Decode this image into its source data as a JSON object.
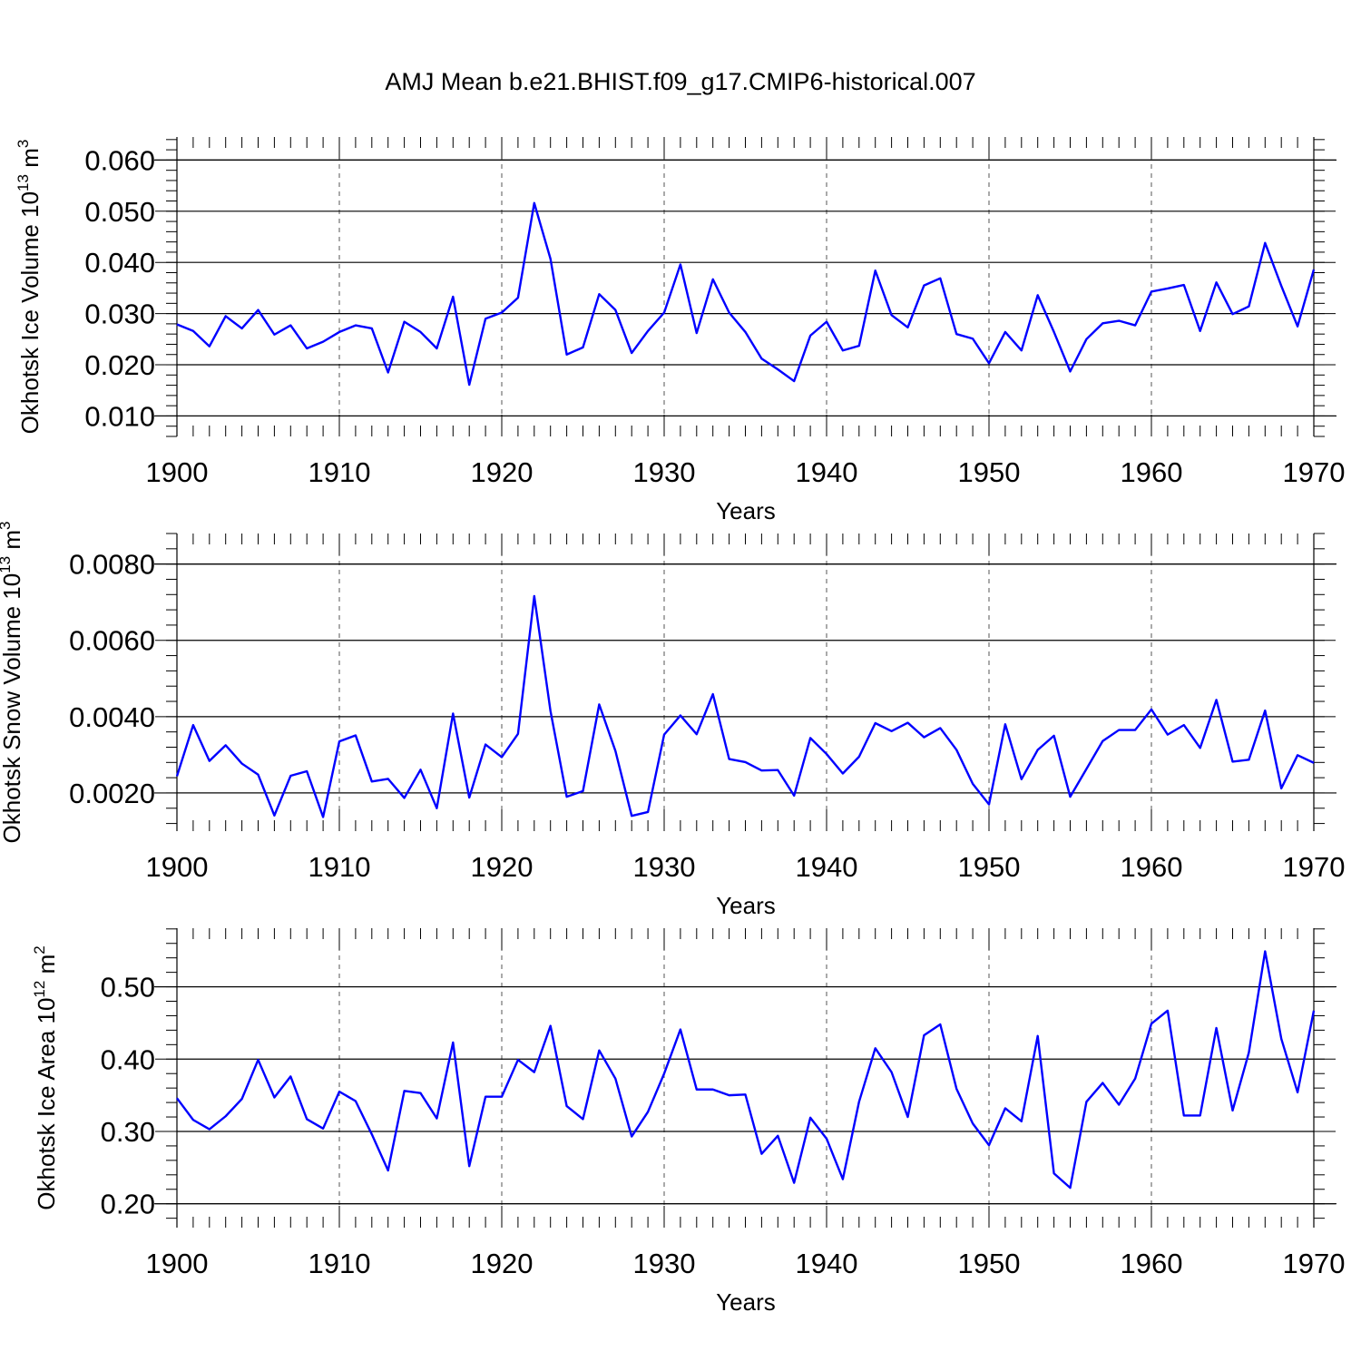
{
  "title": "AMJ Mean b.e21.BHIST.f09_g17.CMIP6-historical.007",
  "chart_data": [
    {
      "type": "line",
      "title": "AMJ Mean b.e21.BHIST.f09_g17.CMIP6-historical.007",
      "xlabel": "Years",
      "ylabel": "Okhotsk Ice Volume 10",
      "ylabel_exp": "13",
      "ylabel_unit": "m",
      "ylabel_unit_exp": "3",
      "xlim": [
        1900,
        1970
      ],
      "ylim": [
        0.006,
        0.0645
      ],
      "x_ticks": [
        1900,
        1910,
        1920,
        1930,
        1940,
        1950,
        1960,
        1970
      ],
      "x_tick_labels": [
        "1900",
        "1910",
        "1920",
        "1930",
        "1940",
        "1950",
        "1960",
        "1970"
      ],
      "y_ticks": [
        0.01,
        0.02,
        0.03,
        0.04,
        0.05,
        0.06
      ],
      "y_tick_labels": [
        "0.010",
        "0.020",
        "0.030",
        "0.040",
        "0.050",
        "0.060"
      ],
      "y_minor_step": 0.002,
      "grid": "x-dashed",
      "series": [
        {
          "name": "Ice Volume",
          "color": "#0000ff",
          "x_start": 1900,
          "values": [
            0.0279,
            0.0266,
            0.0236,
            0.0295,
            0.0271,
            0.0307,
            0.0259,
            0.0277,
            0.0232,
            0.0245,
            0.0264,
            0.0277,
            0.0271,
            0.0185,
            0.0284,
            0.0264,
            0.0232,
            0.0333,
            0.0161,
            0.029,
            0.0302,
            0.0331,
            0.0516,
            0.0407,
            0.022,
            0.0234,
            0.0338,
            0.0307,
            0.0223,
            0.0266,
            0.0302,
            0.0396,
            0.0262,
            0.0367,
            0.0302,
            0.0264,
            0.0212,
            0.0191,
            0.0168,
            0.0257,
            0.0284,
            0.0228,
            0.0237,
            0.0384,
            0.0297,
            0.0273,
            0.0355,
            0.0369,
            0.026,
            0.0251,
            0.0203,
            0.0264,
            0.0228,
            0.0336,
            0.0264,
            0.0187,
            0.025,
            0.0281,
            0.0286,
            0.0277,
            0.0343,
            0.0349,
            0.0356,
            0.0266,
            0.0361,
            0.0299,
            0.0314,
            0.0438,
            0.0354,
            0.0275,
            0.0386
          ]
        }
      ]
    },
    {
      "type": "line",
      "xlabel": "Years",
      "ylabel": "Okhotsk Snow Volume 10",
      "ylabel_exp": "13",
      "ylabel_unit": "m",
      "ylabel_unit_exp": "3",
      "xlim": [
        1900,
        1970
      ],
      "ylim": [
        0.001,
        0.0088
      ],
      "x_ticks": [
        1900,
        1910,
        1920,
        1930,
        1940,
        1950,
        1960,
        1970
      ],
      "x_tick_labels": [
        "1900",
        "1910",
        "1920",
        "1930",
        "1940",
        "1950",
        "1960",
        "1970"
      ],
      "y_ticks": [
        0.002,
        0.004,
        0.006,
        0.008
      ],
      "y_tick_labels": [
        "0.0020",
        "0.0040",
        "0.0060",
        "0.0080"
      ],
      "y_minor_step": 0.0004,
      "grid": "x-dashed",
      "series": [
        {
          "name": "Snow Volume",
          "color": "#0000ff",
          "x_start": 1900,
          "values": [
            0.00244,
            0.00378,
            0.00284,
            0.00325,
            0.00277,
            0.00248,
            0.00141,
            0.00245,
            0.00257,
            0.00137,
            0.00335,
            0.00351,
            0.0023,
            0.00237,
            0.00187,
            0.00261,
            0.0016,
            0.00408,
            0.00188,
            0.00327,
            0.00294,
            0.00355,
            0.00716,
            0.00415,
            0.0019,
            0.00205,
            0.00432,
            0.0031,
            0.0014,
            0.0015,
            0.00353,
            0.00403,
            0.00354,
            0.00459,
            0.00289,
            0.00281,
            0.00259,
            0.0026,
            0.00193,
            0.00344,
            0.00302,
            0.00251,
            0.00295,
            0.00383,
            0.00362,
            0.00384,
            0.00346,
            0.0037,
            0.00313,
            0.00224,
            0.0017,
            0.0038,
            0.00236,
            0.00313,
            0.0035,
            0.0019,
            0.00263,
            0.00336,
            0.00365,
            0.00365,
            0.00419,
            0.00353,
            0.00378,
            0.00318,
            0.00444,
            0.00282,
            0.00287,
            0.00416,
            0.00212,
            0.00299,
            0.00279
          ]
        }
      ]
    },
    {
      "type": "line",
      "xlabel": "Years",
      "ylabel": "Okhotsk Ice Area 10",
      "ylabel_exp": "12",
      "ylabel_unit": "m",
      "ylabel_unit_exp": "2",
      "xlim": [
        1900,
        1970
      ],
      "ylim": [
        0.167,
        0.581
      ],
      "x_ticks": [
        1900,
        1910,
        1920,
        1930,
        1940,
        1950,
        1960,
        1970
      ],
      "x_tick_labels": [
        "1900",
        "1910",
        "1920",
        "1930",
        "1940",
        "1950",
        "1960",
        "1970"
      ],
      "y_ticks": [
        0.2,
        0.3,
        0.4,
        0.5
      ],
      "y_tick_labels": [
        "0.20",
        "0.30",
        "0.40",
        "0.50"
      ],
      "y_minor_step": 0.02,
      "grid": "x-dashed",
      "series": [
        {
          "name": "Ice Area",
          "color": "#0000ff",
          "x_start": 1900,
          "values": [
            0.346,
            0.316,
            0.303,
            0.321,
            0.345,
            0.399,
            0.347,
            0.376,
            0.317,
            0.304,
            0.355,
            0.342,
            0.296,
            0.246,
            0.356,
            0.353,
            0.318,
            0.423,
            0.252,
            0.348,
            0.348,
            0.399,
            0.382,
            0.446,
            0.335,
            0.317,
            0.412,
            0.373,
            0.293,
            0.327,
            0.38,
            0.441,
            0.358,
            0.358,
            0.35,
            0.351,
            0.269,
            0.294,
            0.229,
            0.319,
            0.29,
            0.234,
            0.341,
            0.415,
            0.382,
            0.32,
            0.433,
            0.448,
            0.359,
            0.311,
            0.281,
            0.332,
            0.314,
            0.432,
            0.242,
            0.222,
            0.341,
            0.367,
            0.337,
            0.373,
            0.449,
            0.467,
            0.322,
            0.322,
            0.443,
            0.329,
            0.409,
            0.549,
            0.428,
            0.354,
            0.467
          ]
        }
      ]
    }
  ]
}
